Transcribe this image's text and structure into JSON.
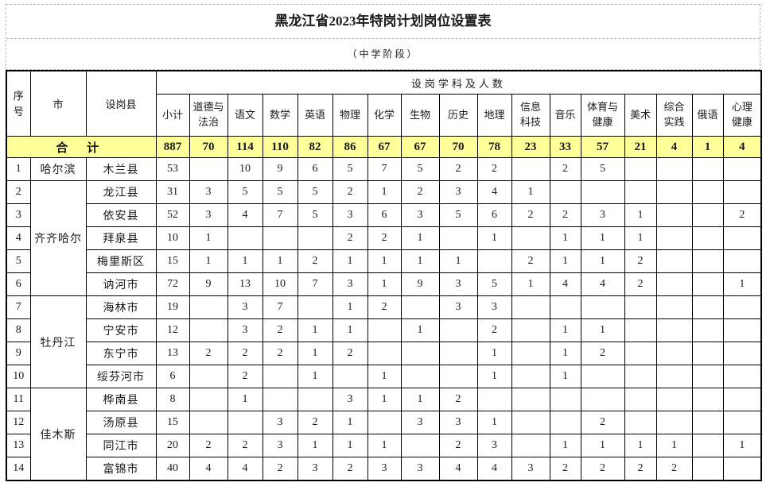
{
  "title": "黑龙江省2023年特岗计划岗位设置表",
  "subtitle": "（中学阶段）",
  "colors": {
    "total_row_highlight": "#FFFF99",
    "border": "#000000",
    "title_grid_dashed": "#b4b4b4"
  },
  "table": {
    "header": {
      "seq": "序\n号",
      "city": "市",
      "county": "设岗县",
      "group": "设岗学科及人数",
      "subjects": [
        "小计",
        "道德与\n法治",
        "语文",
        "数学",
        "英语",
        "物理",
        "化学",
        "生物",
        "历史",
        "地理",
        "信息\n科技",
        "音乐",
        "体育与\n健康",
        "美术",
        "综合\n实践",
        "俄语",
        "心理\n健康"
      ]
    },
    "total": {
      "label": "合  计",
      "values": [
        "887",
        "70",
        "114",
        "110",
        "82",
        "86",
        "67",
        "67",
        "70",
        "78",
        "23",
        "33",
        "57",
        "21",
        "4",
        "1",
        "4"
      ]
    },
    "rows": [
      {
        "seq": "1",
        "city": "哈尔滨",
        "city_span": 1,
        "county": "木兰县",
        "values": [
          "53",
          "",
          "10",
          "9",
          "6",
          "5",
          "7",
          "5",
          "2",
          "2",
          "",
          "2",
          "5",
          "",
          "",
          "",
          ""
        ]
      },
      {
        "seq": "2",
        "city": "齐齐哈尔",
        "city_span": 5,
        "county": "龙江县",
        "values": [
          "31",
          "3",
          "5",
          "5",
          "5",
          "2",
          "1",
          "2",
          "3",
          "4",
          "1",
          "",
          "",
          "",
          "",
          "",
          ""
        ]
      },
      {
        "seq": "3",
        "county": "依安县",
        "values": [
          "52",
          "3",
          "4",
          "7",
          "5",
          "3",
          "6",
          "3",
          "5",
          "6",
          "2",
          "2",
          "3",
          "1",
          "",
          "",
          "2"
        ]
      },
      {
        "seq": "4",
        "county": "拜泉县",
        "values": [
          "10",
          "1",
          "",
          "",
          "",
          "2",
          "2",
          "1",
          "",
          "1",
          "",
          "1",
          "1",
          "1",
          "",
          "",
          ""
        ]
      },
      {
        "seq": "5",
        "county": "梅里斯区",
        "values": [
          "15",
          "1",
          "1",
          "1",
          "2",
          "1",
          "1",
          "1",
          "1",
          "",
          "2",
          "1",
          "1",
          "2",
          "",
          "",
          ""
        ]
      },
      {
        "seq": "6",
        "county": "讷河市",
        "values": [
          "72",
          "9",
          "13",
          "10",
          "7",
          "3",
          "1",
          "9",
          "3",
          "5",
          "1",
          "4",
          "4",
          "2",
          "",
          "",
          "1"
        ]
      },
      {
        "seq": "7",
        "city": "牡丹江",
        "city_span": 4,
        "county": "海林市",
        "values": [
          "19",
          "",
          "3",
          "7",
          "",
          "1",
          "2",
          "",
          "3",
          "3",
          "",
          "",
          "",
          "",
          "",
          "",
          ""
        ]
      },
      {
        "seq": "8",
        "county": "宁安市",
        "values": [
          "12",
          "",
          "3",
          "2",
          "1",
          "1",
          "",
          "1",
          "",
          "2",
          "",
          "1",
          "1",
          "",
          "",
          "",
          ""
        ]
      },
      {
        "seq": "9",
        "county": "东宁市",
        "values": [
          "13",
          "2",
          "2",
          "2",
          "1",
          "2",
          "",
          "",
          "",
          "1",
          "",
          "1",
          "2",
          "",
          "",
          "",
          ""
        ]
      },
      {
        "seq": "10",
        "county": "绥芬河市",
        "values": [
          "6",
          "",
          "2",
          "",
          "1",
          "",
          "1",
          "",
          "",
          "1",
          "",
          "1",
          "",
          "",
          "",
          "",
          ""
        ]
      },
      {
        "seq": "11",
        "city": "佳木斯",
        "city_span": 4,
        "county": "桦南县",
        "values": [
          "8",
          "",
          "1",
          "",
          "",
          "3",
          "1",
          "1",
          "2",
          "",
          "",
          "",
          "",
          "",
          "",
          "",
          ""
        ]
      },
      {
        "seq": "12",
        "county": "汤原县",
        "values": [
          "15",
          "",
          "",
          "3",
          "2",
          "1",
          "",
          "3",
          "3",
          "1",
          "",
          "",
          "2",
          "",
          "",
          "",
          ""
        ]
      },
      {
        "seq": "13",
        "county": "同江市",
        "values": [
          "20",
          "2",
          "2",
          "3",
          "1",
          "1",
          "1",
          "",
          "2",
          "3",
          "",
          "1",
          "1",
          "1",
          "1",
          "",
          "1"
        ]
      },
      {
        "seq": "14",
        "county": "富锦市",
        "values": [
          "40",
          "4",
          "4",
          "2",
          "3",
          "2",
          "3",
          "3",
          "4",
          "4",
          "3",
          "2",
          "2",
          "2",
          "2",
          "",
          ""
        ]
      }
    ]
  }
}
